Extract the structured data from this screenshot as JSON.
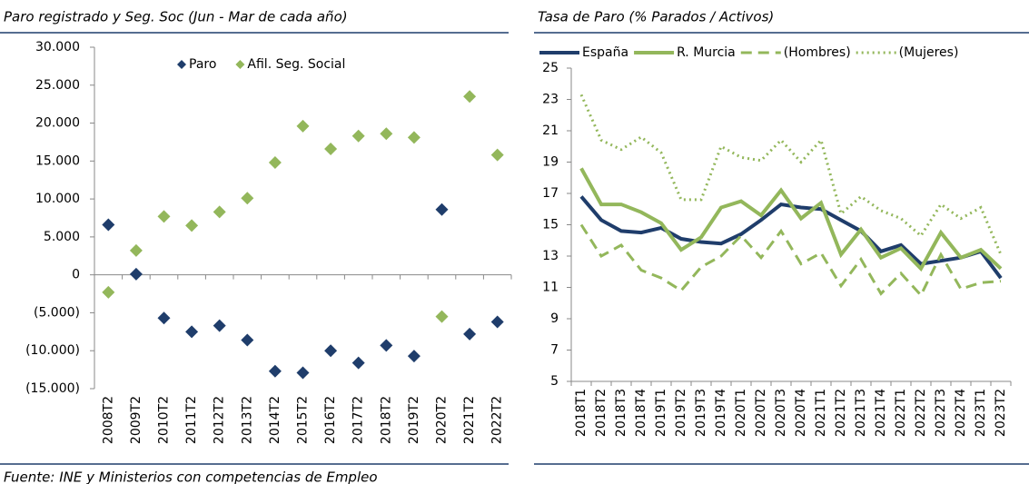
{
  "chart_data": [
    {
      "type": "scatter",
      "title": "Paro registrado y Seg. Soc (Jun - Mar de cada año)",
      "categories": [
        "2008T2",
        "2009T2",
        "2010T2",
        "2011T2",
        "2012T2",
        "2013T2",
        "2014T2",
        "2015T2",
        "2016T2",
        "2017T2",
        "2018T2",
        "2019T2",
        "2020T2",
        "2021T2",
        "2022T2"
      ],
      "series": [
        {
          "name": "Paro",
          "color": "#1f3d6b",
          "marker": "diamond",
          "values": [
            6600,
            100,
            -5700,
            -7500,
            -6700,
            -8600,
            -12700,
            -12900,
            -10000,
            -11600,
            -9300,
            -10700,
            8600,
            -7800,
            -6200
          ]
        },
        {
          "name": "Afil. Seg. Social",
          "color": "#93b75b",
          "marker": "diamond",
          "values": [
            -2300,
            3200,
            7700,
            6500,
            8300,
            10100,
            14800,
            19600,
            16600,
            18300,
            18600,
            18100,
            -5500,
            23500,
            15800
          ]
        }
      ],
      "ylim": [
        -15000,
        30000
      ],
      "yticks": [
        {
          "value": 30000,
          "label": "30.000"
        },
        {
          "value": 25000,
          "label": "25.000"
        },
        {
          "value": 20000,
          "label": "20.000"
        },
        {
          "value": 15000,
          "label": "15.000"
        },
        {
          "value": 10000,
          "label": "10.000"
        },
        {
          "value": 5000,
          "label": "5.000"
        },
        0,
        {
          "value": -5000,
          "label": "(5.000)"
        },
        {
          "value": -10000,
          "label": "(10.000)"
        },
        {
          "value": -15000,
          "label": "(15.000)"
        }
      ],
      "grid": false,
      "legend": "top"
    },
    {
      "type": "line",
      "title": "Tasa de Paro (% Parados / Activos)",
      "categories": [
        "2018T1",
        "2018T2",
        "2018T3",
        "2018T4",
        "2019T1",
        "2019T2",
        "2019T3",
        "2019T4",
        "2020T1",
        "2020T2",
        "2020T3",
        "2020T4",
        "2021T1",
        "2021T2",
        "2021T3",
        "2021T4",
        "2022T1",
        "2022T2",
        "2022T3",
        "2022T4",
        "2023T1",
        "2023T2"
      ],
      "series": [
        {
          "name": "España",
          "color": "#1f3d6b",
          "dash": "solid",
          "values": [
            16.8,
            15.3,
            14.6,
            14.5,
            14.8,
            14.1,
            13.9,
            13.8,
            14.4,
            15.3,
            16.3,
            16.1,
            16.0,
            15.3,
            14.6,
            13.3,
            13.7,
            12.5,
            12.7,
            12.9,
            13.3,
            11.6
          ]
        },
        {
          "name": "R. Murcia",
          "color": "#93b75b",
          "dash": "solid",
          "values": [
            18.6,
            16.3,
            16.3,
            15.8,
            15.1,
            13.4,
            14.2,
            16.1,
            16.5,
            15.6,
            17.2,
            15.4,
            16.4,
            13.1,
            14.7,
            12.9,
            13.5,
            12.2,
            14.5,
            12.9,
            13.4,
            12.2
          ]
        },
        {
          "name": "(Hombres)",
          "color": "#93b75b",
          "dash": "dashed",
          "values": [
            15.0,
            13.0,
            13.7,
            12.1,
            11.6,
            10.8,
            12.3,
            13.0,
            14.3,
            12.9,
            14.6,
            12.5,
            13.2,
            11.1,
            12.8,
            10.6,
            11.9,
            10.5,
            13.1,
            10.9,
            11.3,
            11.4
          ]
        },
        {
          "name": "(Mujeres)",
          "color": "#93b75b",
          "dash": "dotted",
          "values": [
            23.3,
            20.4,
            19.8,
            20.6,
            19.6,
            16.6,
            16.6,
            20.0,
            19.3,
            19.1,
            20.4,
            19.0,
            20.4,
            15.7,
            16.8,
            15.9,
            15.4,
            14.3,
            16.3,
            15.4,
            16.1,
            13.1
          ]
        }
      ],
      "ylim": [
        5,
        25
      ],
      "yticks": [
        5,
        7,
        9,
        11,
        13,
        15,
        17,
        19,
        21,
        23,
        25
      ],
      "grid": false,
      "legend": "top"
    }
  ],
  "source": "Fuente: INE y Ministerios con competencias de Empleo"
}
